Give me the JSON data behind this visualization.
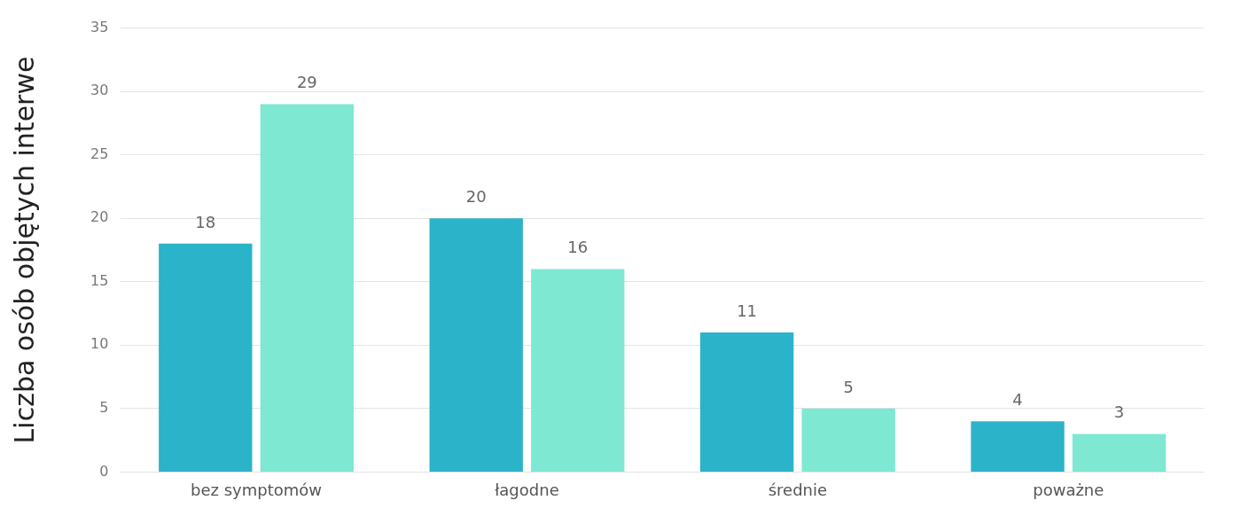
{
  "chart_data": {
    "type": "bar",
    "ylabel": "Liczba osób objętych interwe",
    "categories": [
      "bez symptomów",
      "łagodne",
      "średnie",
      "poważne"
    ],
    "series": [
      {
        "color": "#2ab3c9",
        "values": [
          18,
          20,
          11,
          4
        ]
      },
      {
        "color": "#7ee8d3",
        "values": [
          29,
          16,
          5,
          3
        ]
      }
    ],
    "ylim": [
      0,
      35
    ],
    "yticks": [
      0,
      5,
      10,
      15,
      20,
      25,
      30,
      35
    ],
    "grid": "y",
    "legend": false,
    "data_labels": true
  }
}
